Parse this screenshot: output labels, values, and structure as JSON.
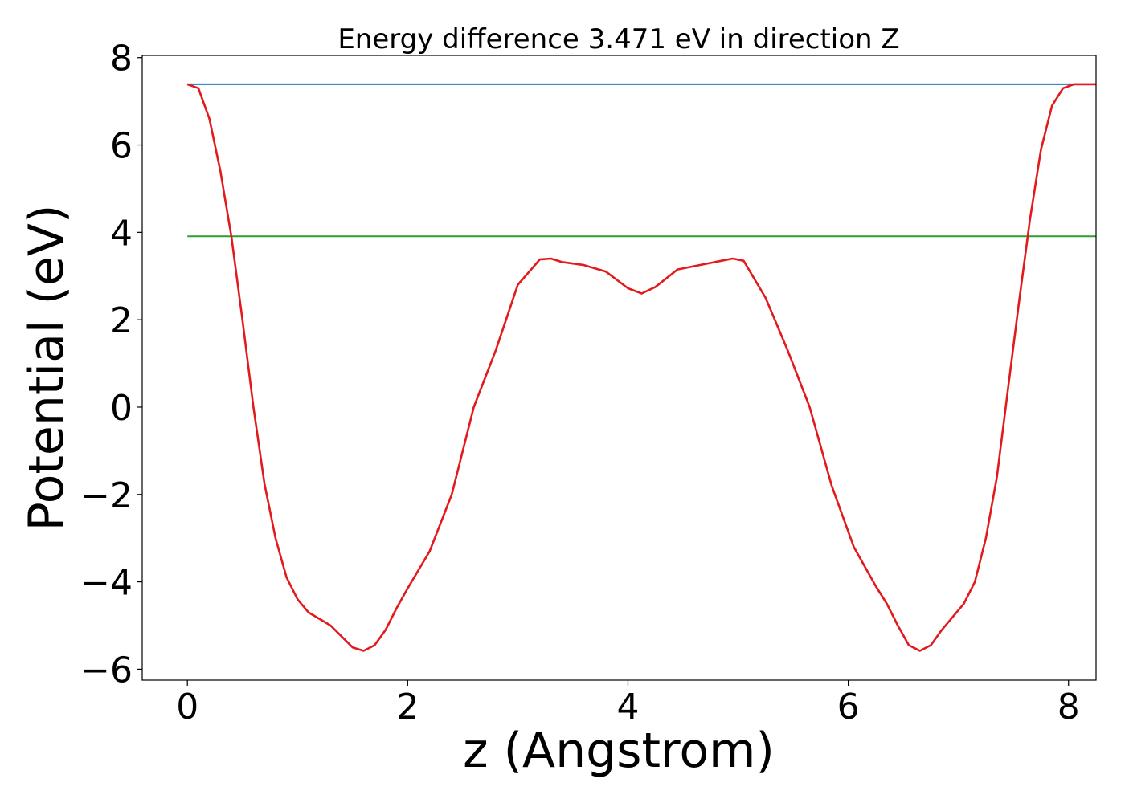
{
  "chart_data": {
    "type": "line",
    "title": "Energy difference 3.471 eV in direction Z",
    "xlabel": "z (Angstrom)",
    "ylabel": "Potential (eV)",
    "xlim": [
      -0.41,
      8.25
    ],
    "ylim": [
      -6.25,
      8.05
    ],
    "x_ticks": [
      0,
      2,
      4,
      6,
      8
    ],
    "x_tick_labels": [
      "0",
      "2",
      "4",
      "6",
      "8"
    ],
    "y_ticks": [
      -6,
      -4,
      -2,
      0,
      2,
      4,
      6,
      8
    ],
    "y_tick_labels": [
      "−6",
      "−4",
      "−2",
      "0",
      "2",
      "4",
      "6",
      "8"
    ],
    "grid": false,
    "series": [
      {
        "color": "#1f77b4",
        "x": [
          0,
          8.25
        ],
        "y": [
          7.39,
          7.39
        ]
      },
      {
        "color": "#2ca02c",
        "x": [
          0,
          8.25
        ],
        "y": [
          3.91,
          3.91
        ]
      },
      {
        "color": "#e31a1c",
        "x": [
          0,
          0.1,
          0.2,
          0.3,
          0.4,
          0.5,
          0.6,
          0.7,
          0.8,
          0.9,
          1.0,
          1.1,
          1.2,
          1.3,
          1.4,
          1.5,
          1.6,
          1.7,
          1.8,
          1.9,
          2.0,
          2.2,
          2.4,
          2.6,
          2.8,
          3.0,
          3.2,
          3.3,
          3.4,
          3.6,
          3.8,
          4.0,
          4.125,
          4.25,
          4.45,
          4.65,
          4.85,
          4.95,
          5.05,
          5.25,
          5.45,
          5.65,
          5.85,
          6.05,
          6.25,
          6.35,
          6.45,
          6.55,
          6.65,
          6.75,
          6.85,
          6.95,
          7.05,
          7.15,
          7.25,
          7.35,
          7.45,
          7.55,
          7.65,
          7.75,
          7.85,
          7.95,
          8.05,
          8.15,
          8.25
        ],
        "y": [
          7.39,
          7.3,
          6.6,
          5.4,
          3.9,
          2.0,
          0.0,
          -1.75,
          -3.0,
          -3.9,
          -4.4,
          -4.7,
          -4.85,
          -5.0,
          -5.25,
          -5.5,
          -5.58,
          -5.45,
          -5.1,
          -4.6,
          -4.15,
          -3.3,
          -2.0,
          0.0,
          1.3,
          2.8,
          3.38,
          3.4,
          3.32,
          3.25,
          3.1,
          2.72,
          2.6,
          2.75,
          3.15,
          3.25,
          3.35,
          3.4,
          3.35,
          2.5,
          1.3,
          0.0,
          -1.8,
          -3.2,
          -4.1,
          -4.5,
          -5.0,
          -5.45,
          -5.58,
          -5.45,
          -5.1,
          -4.8,
          -4.5,
          -4.0,
          -3.0,
          -1.6,
          0.4,
          2.4,
          4.3,
          5.9,
          6.9,
          7.3,
          7.39,
          7.39,
          7.39
        ]
      }
    ]
  }
}
